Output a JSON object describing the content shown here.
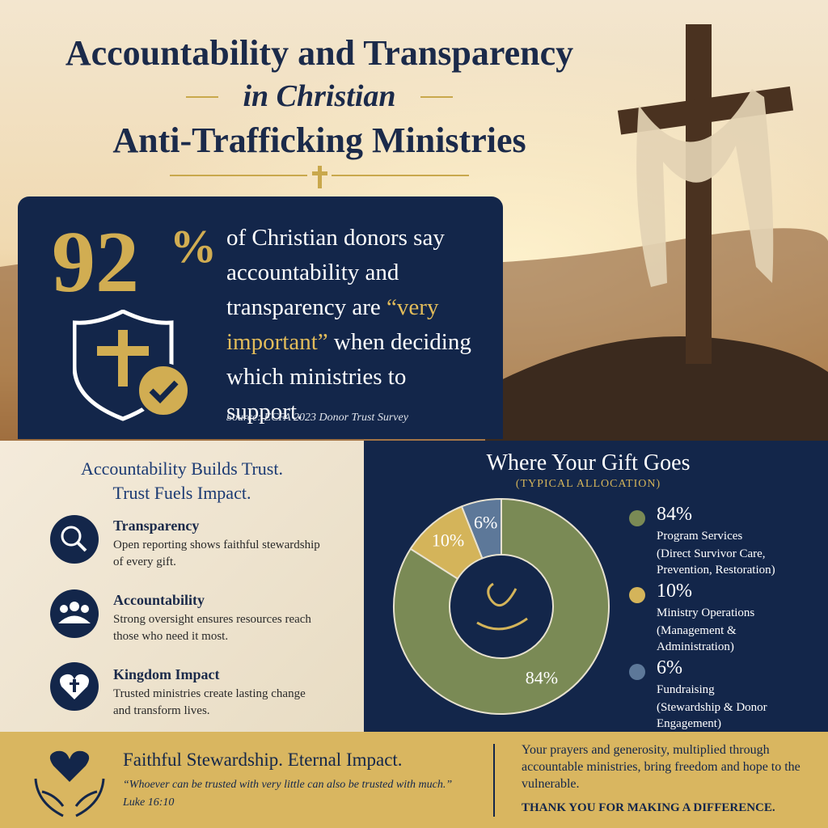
{
  "header": {
    "title_line1": "Accountability and Transparency",
    "title_line2": "in Christian",
    "title_line3": "Anti-Trafficking Ministries"
  },
  "stat": {
    "number": "92",
    "unit": "%",
    "text_before": "of Christian donors say accountability and transparency are",
    "highlight": "“very important”",
    "text_after": "when deciding which ministries to support.",
    "source": "Source: ECFA 2023 Donor Trust Survey"
  },
  "trust": {
    "title_line1": "Accountability Builds Trust.",
    "title_line2": "Trust Fuels Impact.",
    "items": [
      {
        "title": "Transparency",
        "text": "Open reporting shows faithful stewardship of every gift."
      },
      {
        "title": "Accountability",
        "text": "Strong oversight ensures resources reach those who need it most."
      },
      {
        "title": "Kingdom Impact",
        "text": "Trusted ministries create lasting change and transform lives."
      }
    ]
  },
  "chart_data": {
    "type": "pie",
    "title": "Where Your Gift Goes",
    "subtitle": "(TYPICAL ALLOCATION)",
    "categories": [
      "Program Services",
      "Ministry Operations",
      "Fundraising"
    ],
    "descriptions": [
      "(Direct Survivor Care, Prevention, Restoration)",
      "(Management & Administration)",
      "(Stewardship & Donor Engagement)"
    ],
    "values": [
      84,
      10,
      6
    ],
    "value_labels": [
      "84%",
      "10%",
      "6%"
    ],
    "colors": [
      "#7a8a55",
      "#d4b45a",
      "#5d7899"
    ]
  },
  "footer": {
    "title": "Faithful Stewardship. Eternal Impact.",
    "quote": "“Whoever can be trusted with very little can also be trusted with much.”",
    "reference": "Luke 16:10",
    "message": "Your prayers and generosity, multiplied through accountable ministries, bring freedom and hope to the vulnerable.",
    "thanks": "THANK YOU FOR MAKING A DIFFERENCE."
  }
}
